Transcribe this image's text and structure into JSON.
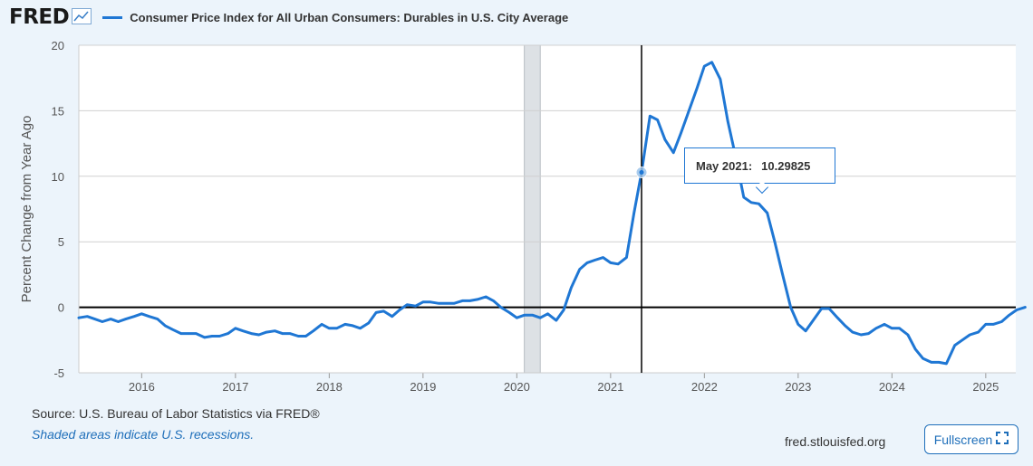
{
  "header": {
    "logo_text": "FRED",
    "logo_icon": "line-chart-icon",
    "series_title": "Consumer Price Index for All Urban Consumers: Durables in U.S. City Average"
  },
  "colors": {
    "series": "#1f77d4",
    "recession": "#dde1e5",
    "background": "#ecf4fb"
  },
  "tooltip": {
    "date": "May 2021:",
    "value": "10.29825",
    "x": 2021.33,
    "y": 10.29825
  },
  "footer": {
    "source": "Source: U.S. Bureau of Labor Statistics via FRED®",
    "note": "Shaded areas indicate U.S. recessions.",
    "site": "fred.stlouisfed.org",
    "fullscreen_label": "Fullscreen",
    "fullscreen_icon": "expand-icon"
  },
  "chart_data": {
    "type": "line",
    "title": "Consumer Price Index for All Urban Consumers: Durables in U.S. City Average",
    "xlabel": "",
    "ylabel": "Percent Change from Year Ago",
    "xlim": [
      2015.33,
      2025.42
    ],
    "ylim": [
      -5,
      20
    ],
    "yticks": [
      -5,
      0,
      5,
      10,
      15,
      20
    ],
    "xticks": [
      2016,
      2017,
      2018,
      2019,
      2020,
      2021,
      2022,
      2023,
      2024,
      2025
    ],
    "grid": true,
    "zero_line": true,
    "recession": [
      2020.08,
      2020.25
    ],
    "crosshair_x": 2021.33,
    "series": [
      {
        "name": "Consumer Price Index for All Urban Consumers: Durables in U.S. City Average",
        "x": [
          2015.33,
          2015.42,
          2015.5,
          2015.58,
          2015.67,
          2015.75,
          2015.83,
          2015.92,
          2016.0,
          2016.08,
          2016.17,
          2016.25,
          2016.33,
          2016.42,
          2016.5,
          2016.58,
          2016.67,
          2016.75,
          2016.83,
          2016.92,
          2017.0,
          2017.08,
          2017.17,
          2017.25,
          2017.33,
          2017.42,
          2017.5,
          2017.58,
          2017.67,
          2017.75,
          2017.83,
          2017.92,
          2018.0,
          2018.08,
          2018.17,
          2018.25,
          2018.33,
          2018.42,
          2018.5,
          2018.58,
          2018.67,
          2018.75,
          2018.83,
          2018.92,
          2019.0,
          2019.08,
          2019.17,
          2019.25,
          2019.33,
          2019.42,
          2019.5,
          2019.58,
          2019.67,
          2019.75,
          2019.83,
          2019.92,
          2020.0,
          2020.08,
          2020.17,
          2020.25,
          2020.33,
          2020.42,
          2020.5,
          2020.58,
          2020.67,
          2020.75,
          2020.83,
          2020.92,
          2021.0,
          2021.08,
          2021.17,
          2021.25,
          2021.33,
          2021.42,
          2021.5,
          2021.58,
          2021.67,
          2021.75,
          2021.83,
          2021.92,
          2022.0,
          2022.08,
          2022.17,
          2022.25,
          2022.33,
          2022.42,
          2022.5,
          2022.58,
          2022.67,
          2022.75,
          2022.83,
          2022.92,
          2023.0,
          2023.08,
          2023.17,
          2023.25,
          2023.33,
          2023.42,
          2023.5,
          2023.58,
          2023.67,
          2023.75,
          2023.83,
          2023.92,
          2024.0,
          2024.08,
          2024.17,
          2024.25,
          2024.33,
          2024.42,
          2024.5,
          2024.58,
          2024.67,
          2024.75,
          2024.83,
          2024.92,
          2025.0,
          2025.08,
          2025.17,
          2025.25,
          2025.33,
          2025.42
        ],
        "y": [
          -0.8,
          -0.7,
          -0.9,
          -1.1,
          -0.9,
          -1.1,
          -0.9,
          -0.7,
          -0.5,
          -0.7,
          -0.9,
          -1.4,
          -1.7,
          -2.0,
          -2.0,
          -2.0,
          -2.3,
          -2.2,
          -2.2,
          -2.0,
          -1.6,
          -1.8,
          -2.0,
          -2.1,
          -1.9,
          -1.8,
          -2.0,
          -2.0,
          -2.2,
          -2.2,
          -1.8,
          -1.3,
          -1.6,
          -1.6,
          -1.3,
          -1.4,
          -1.6,
          -1.2,
          -0.4,
          -0.3,
          -0.7,
          -0.2,
          0.2,
          0.1,
          0.4,
          0.4,
          0.3,
          0.3,
          0.3,
          0.5,
          0.5,
          0.6,
          0.8,
          0.5,
          0.0,
          -0.4,
          -0.8,
          -0.6,
          -0.6,
          -0.8,
          -0.5,
          -1.0,
          -0.2,
          1.5,
          2.9,
          3.4,
          3.6,
          3.8,
          3.4,
          3.3,
          3.8,
          7.2,
          10.3,
          14.6,
          14.3,
          12.8,
          11.8,
          13.3,
          14.9,
          16.7,
          18.4,
          18.7,
          17.4,
          14.2,
          11.6,
          8.4,
          8.0,
          7.9,
          7.2,
          5.0,
          2.6,
          0.0,
          -1.3,
          -1.8,
          -0.9,
          -0.1,
          -0.1,
          -0.8,
          -1.4,
          -1.9,
          -2.1,
          -2.0,
          -1.6,
          -1.3,
          -1.6,
          -1.6,
          -2.1,
          -3.2,
          -3.9,
          -4.2,
          -4.2,
          -4.3,
          -2.9,
          -2.5,
          -2.1,
          -1.9,
          -1.3,
          -1.3,
          -1.1,
          -0.6,
          -0.2,
          0.0
        ]
      }
    ]
  }
}
